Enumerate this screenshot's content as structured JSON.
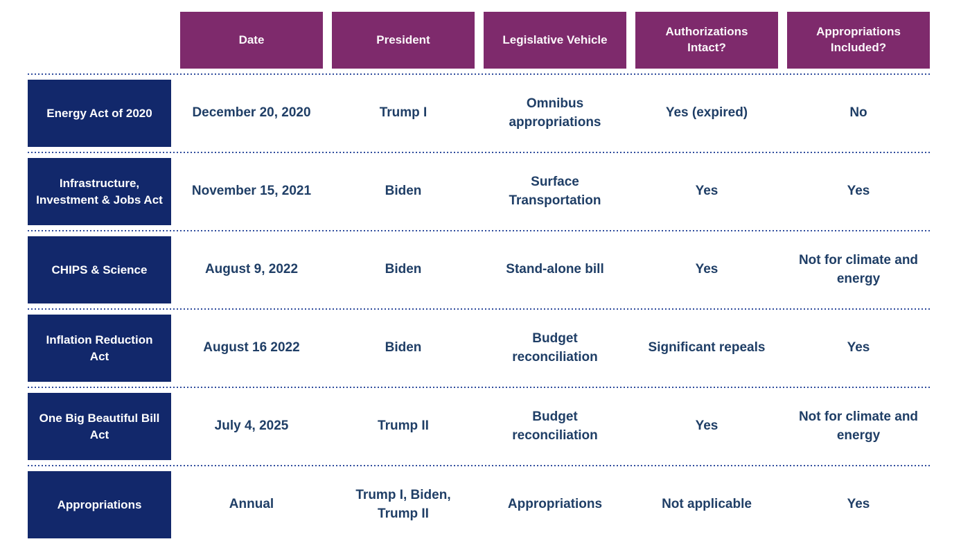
{
  "chart_data": {
    "type": "table",
    "title": "",
    "columns": [
      "Date",
      "President",
      "Legislative Vehicle",
      "Authorizations Intact?",
      "Appropriations Included?"
    ],
    "rows": [
      {
        "label": "Energy Act of 2020",
        "cells": [
          "December 20, 2020",
          "Trump I",
          "Omnibus appropriations",
          "Yes (expired)",
          "No"
        ]
      },
      {
        "label": "Infrastructure, Investment & Jobs Act",
        "cells": [
          "November 15, 2021",
          "Biden",
          "Surface Transportation",
          "Yes",
          "Yes"
        ]
      },
      {
        "label": "CHIPS & Science",
        "cells": [
          "August 9, 2022",
          "Biden",
          "Stand-alone bill",
          "Yes",
          "Not for climate and energy"
        ]
      },
      {
        "label": "Inflation Reduction Act",
        "cells": [
          "August 16 2022",
          "Biden",
          "Budget reconciliation",
          "Significant repeals",
          "Yes"
        ]
      },
      {
        "label": "One Big Beautiful Bill Act",
        "cells": [
          "July 4, 2025",
          "Trump II",
          "Budget reconciliation",
          "Yes",
          "Not for climate and energy"
        ]
      },
      {
        "label": "Appropriations",
        "cells": [
          "Annual",
          "Trump I, Biden, Trump II",
          "Appropriations",
          "Not applicable",
          "Yes"
        ]
      }
    ],
    "layout": {
      "grid": false,
      "row_dividers": "dotted",
      "legend": "none"
    },
    "colors": {
      "header-bg": "#7E2A6C",
      "header-text": "#FBF7FA",
      "label-bg": "#12286B",
      "cell-text": "#1F3E66",
      "divider": "#2E4B9C",
      "background": "#FFFFFF"
    }
  }
}
